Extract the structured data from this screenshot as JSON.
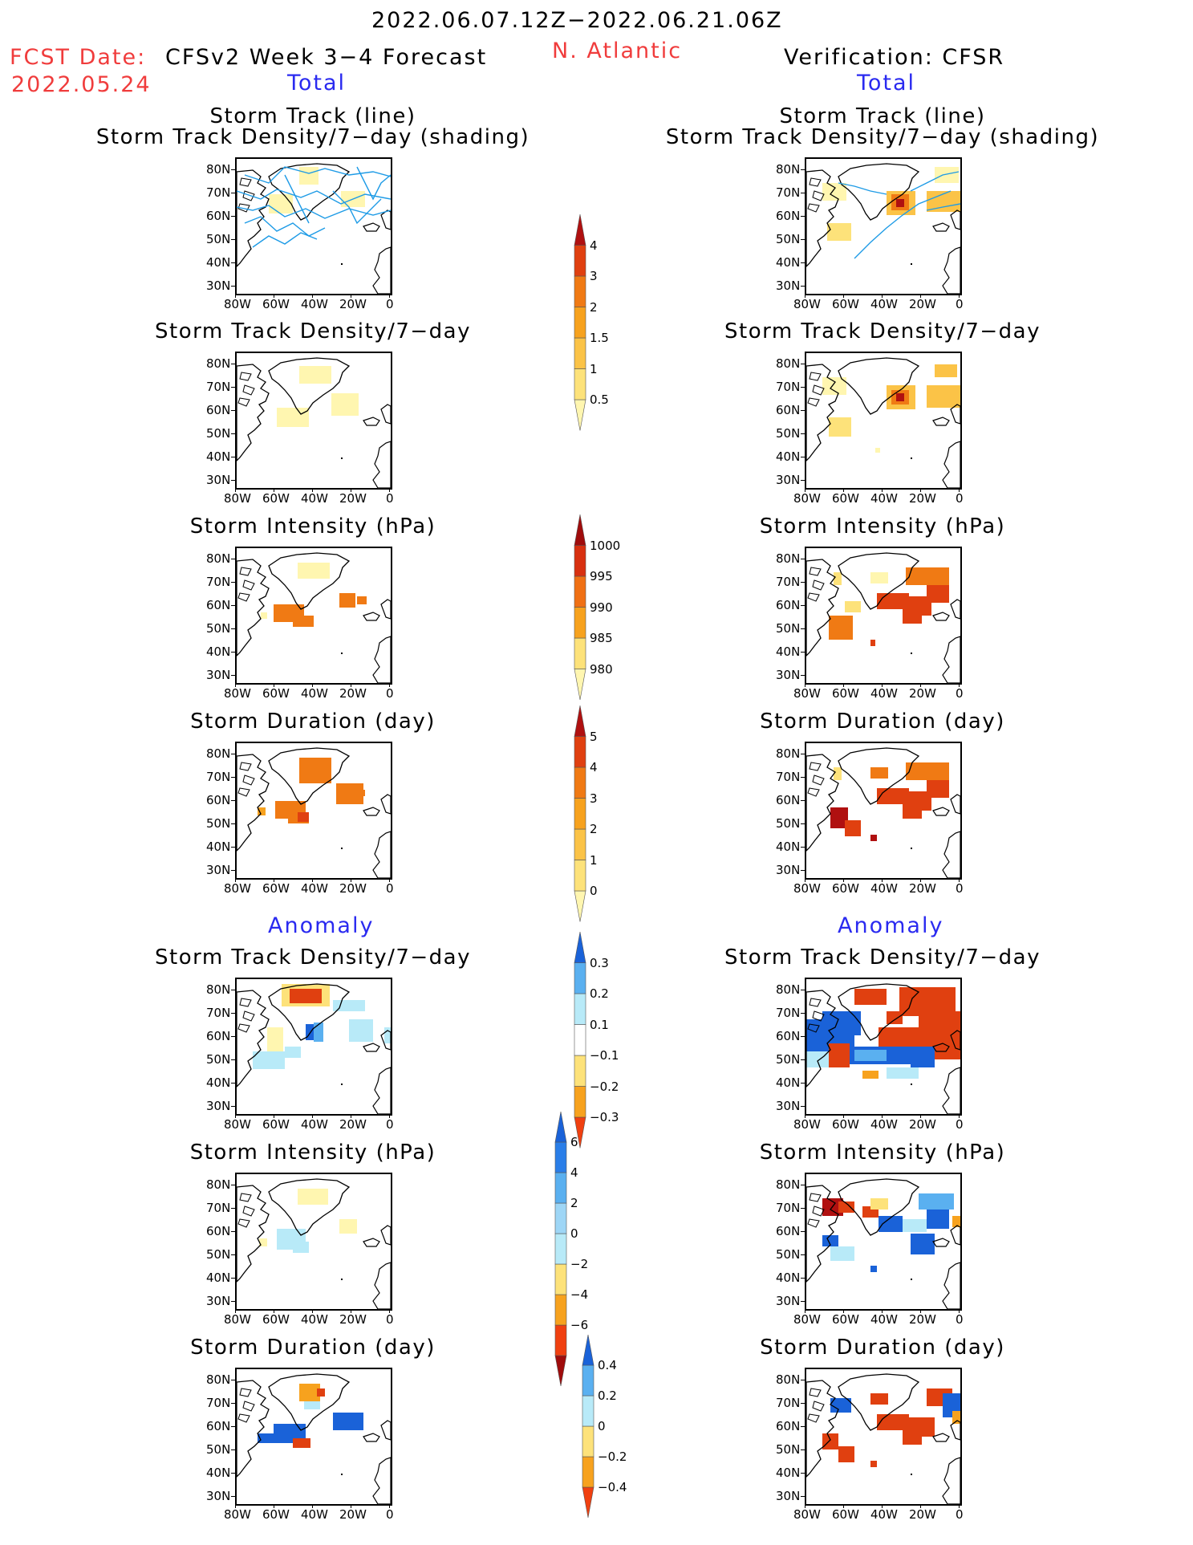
{
  "header": {
    "period": "2022.06.07.12Z−2022.06.21.06Z",
    "fcst_date_label": "FCST Date:",
    "fcst_date": "2022.05.24",
    "model": "CFSv2 Week 3−4 Forecast",
    "region": "N. Atlantic",
    "verification": "Verification: CFSR"
  },
  "sections": {
    "total": "Total",
    "anomaly": "Anomaly"
  },
  "titles": {
    "track_line": "Storm Track (line)",
    "track_shading": "Storm Track Density/7−day (shading)",
    "density": "Storm Track Density/7−day",
    "intensity": "Storm Intensity (hPa)",
    "duration": "Storm Duration (day)"
  },
  "axes": {
    "lat_ticks": [
      "80N",
      "70N",
      "60N",
      "50N",
      "40N",
      "30N"
    ],
    "lon_ticks": [
      "80W",
      "60W",
      "40W",
      "20W",
      "0"
    ]
  },
  "colorbars": {
    "density_total": {
      "labels": [
        "0.5",
        "1",
        "1.5",
        "2",
        "3",
        "4"
      ],
      "colors": [
        "#fff6b0",
        "#fde27a",
        "#fbc347",
        "#f7a21e",
        "#f07a14",
        "#e04010",
        "#b01010"
      ]
    },
    "intensity_total": {
      "labels": [
        "1000",
        "995",
        "990",
        "985",
        "980"
      ],
      "colors": [
        "#fff6b0",
        "#fde27a",
        "#f7a21e",
        "#f07014",
        "#d83010",
        "#a00c0c"
      ]
    },
    "duration_total": {
      "labels": [
        "0",
        "1",
        "2",
        "3",
        "4",
        "5"
      ],
      "colors": [
        "#fff6b0",
        "#fde27a",
        "#fbc347",
        "#f7a21e",
        "#f07a14",
        "#e04010",
        "#b01010"
      ]
    },
    "density_anom": {
      "labels": [
        "0.3",
        "0.2",
        "0.1",
        "−0.1",
        "−0.2",
        "−0.3"
      ],
      "colors": [
        "#f04010",
        "#f7a21e",
        "#fde27a",
        "#ffffff",
        "#b8eaf8",
        "#5ab0f0",
        "#1a62d8"
      ]
    },
    "intensity_anom": {
      "labels": [
        "6",
        "4",
        "2",
        "0",
        "−2",
        "−4",
        "−6"
      ],
      "colors": [
        "#a00c0c",
        "#f04010",
        "#f7a21e",
        "#fde27a",
        "#b8eaf8",
        "#9ed6f6",
        "#5ab0f0",
        "#2a7ee8",
        "#1a62d8"
      ]
    },
    "duration_anom": {
      "labels": [
        "0.4",
        "0.2",
        "0",
        "−0.2",
        "−0.4"
      ],
      "colors": [
        "#f04010",
        "#f7a21e",
        "#fde27a",
        "#b8eaf8",
        "#5ab0f0",
        "#1a62d8"
      ]
    }
  }
}
